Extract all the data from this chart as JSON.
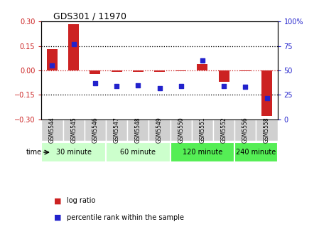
{
  "title": "GDS301 / 11970",
  "samples": [
    "GSM5544",
    "GSM5545",
    "GSM5546",
    "GSM5547",
    "GSM5548",
    "GSM5549",
    "GSM5550",
    "GSM5551",
    "GSM5552",
    "GSM5556",
    "GSM5558"
  ],
  "log_ratio": [
    0.13,
    0.285,
    -0.02,
    -0.01,
    -0.01,
    -0.01,
    -0.005,
    0.04,
    -0.07,
    -0.005,
    -0.28
  ],
  "percentile_rank": [
    55,
    77,
    37,
    34,
    35,
    32,
    34,
    60,
    34,
    33,
    22
  ],
  "time_groups": [
    {
      "label": "30 minute",
      "start": 0,
      "end": 3,
      "color": "#ccffcc"
    },
    {
      "label": "60 minute",
      "start": 3,
      "end": 6,
      "color": "#ccffcc"
    },
    {
      "label": "120 minute",
      "start": 6,
      "end": 9,
      "color": "#55ee55"
    },
    {
      "label": "240 minute",
      "start": 9,
      "end": 11,
      "color": "#55ee55"
    }
  ],
  "bar_color_log": "#cc2222",
  "bar_color_pct": "#2222cc",
  "ylim_log": [
    -0.3,
    0.3
  ],
  "ylim_pct": [
    0,
    100
  ],
  "yticks_log": [
    -0.3,
    -0.15,
    0.0,
    0.15,
    0.3
  ],
  "yticks_pct": [
    0,
    25,
    50,
    75,
    100
  ],
  "hlines_dotted": [
    -0.15,
    0.15
  ],
  "hline_red": 0.0,
  "bar_width": 0.5,
  "plot_bg": "#ffffff",
  "background_color": "#ffffff",
  "sample_box_color": "#d0d0d0",
  "legend_log_label": "log ratio",
  "legend_pct_label": "percentile rank within the sample",
  "time_label": "time"
}
